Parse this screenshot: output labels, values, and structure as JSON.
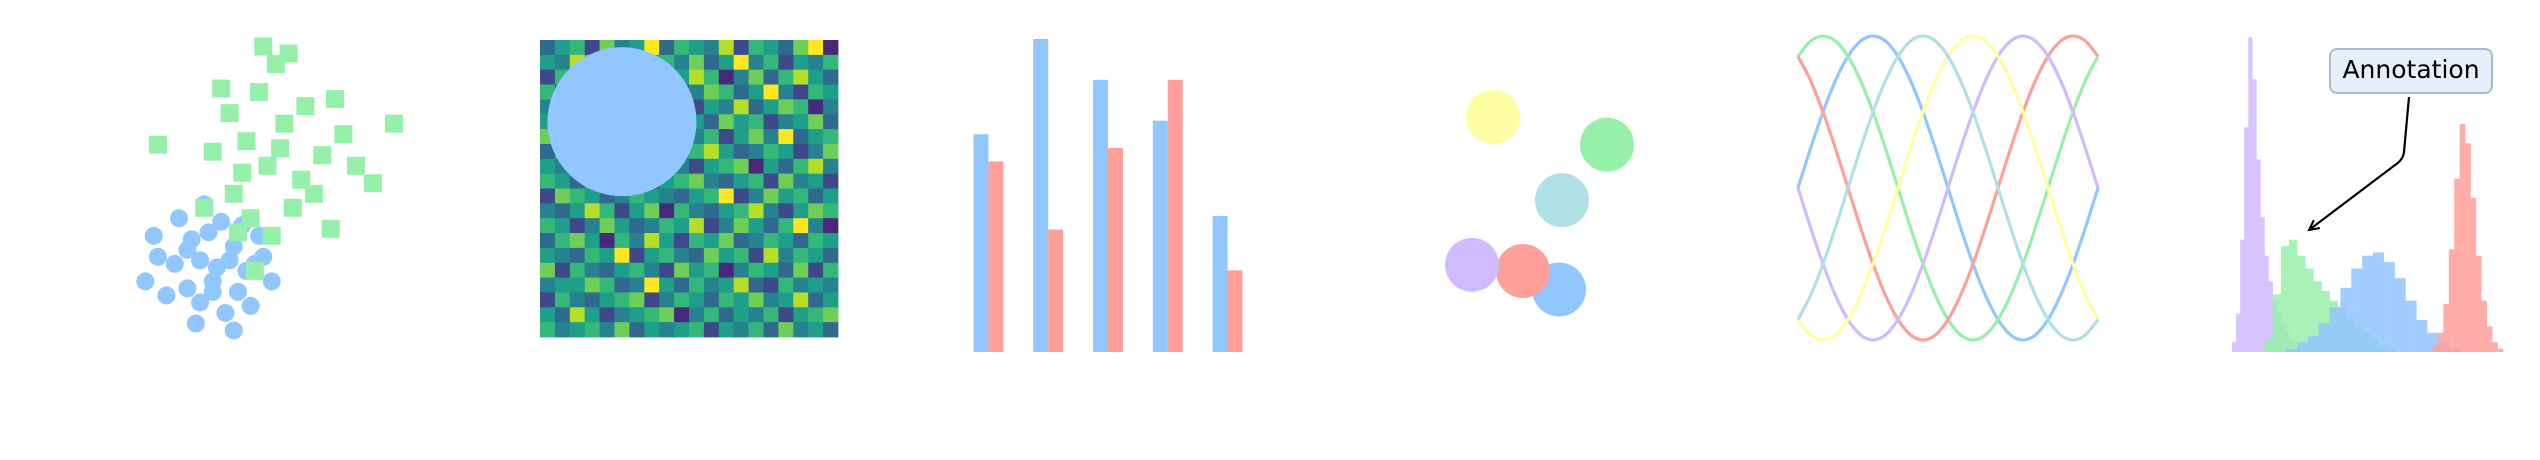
{
  "chart_data": [
    {
      "type": "scatter",
      "xlim": [
        -2.5,
        4.5
      ],
      "ylim": [
        -2.8,
        6.3
      ],
      "series": [
        {
          "color": "#92c6ff",
          "marker": "circle",
          "x": [
            -1.2,
            -0.8,
            -0.3,
            0.2,
            -0.6,
            -1.6,
            0.5,
            -0.1,
            0.3,
            -0.9,
            0.8,
            -0.4,
            -1.9,
            0.1,
            -0.7,
            0.6,
            -0.2,
            -1.1,
            0.9,
            -0.5,
            0.0,
            -1.4,
            0.4,
            -0.9,
            0.2,
            -0.3,
            1.1,
            -1.7,
            -0.6,
            0.7
          ],
          "values": [
            -0.4,
            0.3,
            -0.9,
            0.1,
            -1.5,
            -0.2,
            -0.6,
            0.8,
            -1.2,
            -1.1,
            0.4,
            0.5,
            -0.9,
            -0.3,
            -2.1,
            -1.6,
            -0.5,
            0.9,
            -0.2,
            1.3,
            -1.8,
            -1.3,
            0.7,
            0.0,
            -2.3,
            -1.2,
            -0.9,
            0.4,
            -0.3,
            -0.4
          ]
        },
        {
          "color": "#97f0aa",
          "marker": "square",
          "x": [
            1.0,
            0.5,
            1.8,
            0.2,
            1.4,
            2.3,
            0.8,
            -0.3,
            1.6,
            2.8,
            0.1,
            1.2,
            3.5,
            -1.6,
            0.6,
            1.9,
            0.9,
            2.5,
            4.0,
            -0.5,
            1.3,
            0.4,
            2.1,
            0.7,
            1.5,
            3.1,
            -0.1,
            1.1,
            2.6,
            0.3
          ],
          "values": [
            2.4,
            3.1,
            2.0,
            1.6,
            3.6,
            2.7,
            4.5,
            2.8,
            1.2,
            3.3,
            3.9,
            5.3,
            1.9,
            3.0,
            0.9,
            4.1,
            5.8,
            0.6,
            3.6,
            1.2,
            2.9,
            2.2,
            1.6,
            -0.6,
            5.6,
            2.4,
            4.6,
            0.4,
            4.3,
            0.5
          ]
        }
      ]
    },
    {
      "type": "heatmap",
      "xlim": [
        -0.5,
        19.5
      ],
      "ylim": [
        19.5,
        -0.5
      ],
      "clim": [
        0,
        9
      ],
      "colormap": [
        "#440154",
        "#482878",
        "#3e4989",
        "#31688e",
        "#26828e",
        "#1f9e89",
        "#35b779",
        "#6ece58",
        "#b5de2b",
        "#fde725"
      ],
      "z": [
        [
          3,
          5,
          6,
          2,
          7,
          4,
          5,
          9,
          3,
          6,
          5,
          4,
          8,
          2,
          6,
          5,
          3,
          7,
          9,
          1
        ],
        [
          5,
          4,
          8,
          6,
          3,
          7,
          1,
          5,
          6,
          4,
          7,
          3,
          5,
          9,
          4,
          6,
          2,
          5,
          4,
          6
        ],
        [
          2,
          6,
          4,
          5,
          9,
          3,
          6,
          4,
          2,
          5,
          8,
          6,
          1,
          4,
          7,
          3,
          6,
          8,
          5,
          3
        ],
        [
          6,
          3,
          5,
          7,
          4,
          6,
          2,
          8,
          5,
          3,
          4,
          7,
          6,
          3,
          5,
          9,
          4,
          2,
          6,
          5
        ],
        [
          4,
          7,
          2,
          5,
          6,
          1,
          5,
          3,
          7,
          6,
          2,
          5,
          4,
          8,
          3,
          5,
          7,
          6,
          1,
          4
        ],
        [
          5,
          5,
          6,
          3,
          4,
          7,
          6,
          2,
          4,
          8,
          5,
          3,
          7,
          5,
          6,
          2,
          4,
          5,
          7,
          3
        ],
        [
          7,
          2,
          4,
          6,
          5,
          3,
          8,
          5,
          6,
          1,
          4,
          6,
          2,
          5,
          7,
          4,
          9,
          3,
          5,
          6
        ],
        [
          3,
          6,
          5,
          4,
          2,
          6,
          4,
          7,
          3,
          5,
          6,
          8,
          5,
          3,
          4,
          6,
          5,
          2,
          4,
          7
        ],
        [
          5,
          4,
          7,
          1,
          6,
          5,
          3,
          6,
          8,
          4,
          2,
          5,
          6,
          7,
          1,
          5,
          3,
          6,
          8,
          4
        ],
        [
          6,
          5,
          3,
          6,
          4,
          8,
          5,
          2,
          5,
          6,
          7,
          4,
          3,
          5,
          6,
          2,
          7,
          4,
          5,
          2
        ],
        [
          2,
          7,
          6,
          5,
          3,
          4,
          6,
          5,
          4,
          3,
          5,
          6,
          9,
          2,
          4,
          7,
          5,
          6,
          3,
          5
        ],
        [
          4,
          3,
          5,
          8,
          6,
          2,
          5,
          7,
          1,
          6,
          4,
          3,
          5,
          6,
          8,
          4,
          2,
          5,
          7,
          6
        ],
        [
          6,
          5,
          2,
          4,
          7,
          5,
          3,
          4,
          6,
          5,
          8,
          2,
          4,
          7,
          5,
          3,
          6,
          9,
          4,
          1
        ],
        [
          3,
          6,
          7,
          5,
          1,
          6,
          4,
          8,
          5,
          2,
          6,
          5,
          7,
          3,
          4,
          6,
          5,
          3,
          6,
          5
        ],
        [
          5,
          4,
          3,
          6,
          5,
          9,
          2,
          5,
          6,
          4,
          3,
          7,
          5,
          6,
          2,
          8,
          4,
          6,
          5,
          3
        ],
        [
          7,
          2,
          6,
          4,
          3,
          5,
          6,
          4,
          2,
          7,
          5,
          6,
          1,
          4,
          6,
          5,
          3,
          7,
          2,
          6
        ],
        [
          4,
          5,
          5,
          7,
          6,
          3,
          4,
          9,
          5,
          3,
          6,
          4,
          5,
          8,
          3,
          2,
          6,
          4,
          5,
          4
        ],
        [
          2,
          6,
          4,
          3,
          5,
          6,
          7,
          2,
          4,
          6,
          5,
          3,
          6,
          5,
          7,
          4,
          5,
          8,
          3,
          5
        ],
        [
          5,
          3,
          8,
          5,
          2,
          4,
          5,
          6,
          7,
          1,
          4,
          6,
          3,
          5,
          4,
          6,
          2,
          5,
          6,
          7
        ],
        [
          6,
          4,
          5,
          6,
          4,
          7,
          3,
          5,
          4,
          5,
          6,
          2,
          5,
          4,
          6,
          3,
          7,
          4,
          5,
          3
        ]
      ],
      "circle": {
        "center": [
          5,
          5
        ],
        "radius": 5,
        "color": "#92c6ff"
      }
    },
    {
      "type": "bar",
      "xlim": [
        -0.2,
        4.45
      ],
      "ylim": [
        0,
        23
      ],
      "series": [
        {
          "color": "#92c6ff",
          "values": [
            16,
            23,
            20,
            17,
            10
          ]
        },
        {
          "color": "#ff9f9a",
          "values": [
            14,
            9,
            15,
            20,
            6
          ]
        }
      ]
    },
    {
      "type": "circles",
      "xlim": [
        0,
        10
      ],
      "ylim": [
        0,
        10
      ],
      "radius": 0.9,
      "x": [
        5.8,
        7.4,
        4.6,
        2.9,
        3.6,
        5.9
      ],
      "values": [
        1.9,
        6.6,
        2.5,
        2.7,
        7.5,
        4.8
      ],
      "colors": [
        "#92c6ff",
        "#97f0aa",
        "#ff9f9a",
        "#d0bbff",
        "#fffea3",
        "#b0e0e6"
      ]
    },
    {
      "type": "line",
      "xlim": [
        0,
        6.283
      ],
      "ylim": [
        -1,
        1
      ],
      "x": [
        0,
        0.262,
        0.524,
        0.785,
        1.047,
        1.309,
        1.571,
        1.833,
        2.094,
        2.356,
        2.618,
        2.88,
        3.142,
        3.403,
        3.665,
        3.927,
        4.189,
        4.451,
        4.712,
        4.974,
        5.236,
        5.498,
        5.76,
        6.021,
        6.283
      ],
      "series": [
        {
          "color": "#92c6ff",
          "values": [
            0,
            0.259,
            0.5,
            0.707,
            0.866,
            0.966,
            1,
            0.966,
            0.866,
            0.707,
            0.5,
            0.259,
            0,
            -0.259,
            -0.5,
            -0.707,
            -0.866,
            -0.966,
            -1,
            -0.966,
            -0.866,
            -0.707,
            -0.5,
            -0.259,
            0
          ]
        },
        {
          "color": "#97f0aa",
          "values": [
            0.866,
            0.966,
            1,
            0.966,
            0.866,
            0.707,
            0.5,
            0.259,
            0,
            -0.259,
            -0.5,
            -0.707,
            -0.866,
            -0.966,
            -1,
            -0.966,
            -0.866,
            -0.707,
            -0.5,
            -0.259,
            0,
            0.259,
            0.5,
            0.707,
            0.866
          ]
        },
        {
          "color": "#ff9f9a",
          "values": [
            0.866,
            0.707,
            0.5,
            0.259,
            0,
            -0.259,
            -0.5,
            -0.707,
            -0.866,
            -0.966,
            -1,
            -0.966,
            -0.866,
            -0.707,
            -0.5,
            -0.259,
            0,
            0.259,
            0.5,
            0.707,
            0.866,
            0.966,
            1,
            0.966,
            0.866
          ]
        },
        {
          "color": "#d0bbff",
          "values": [
            0,
            -0.259,
            -0.5,
            -0.707,
            -0.866,
            -0.966,
            -1,
            -0.966,
            -0.866,
            -0.707,
            -0.5,
            -0.259,
            0,
            0.259,
            0.5,
            0.707,
            0.866,
            0.966,
            1,
            0.966,
            0.866,
            0.707,
            0.5,
            0.259,
            0
          ]
        },
        {
          "color": "#fffea3",
          "values": [
            -0.866,
            -0.966,
            -1,
            -0.966,
            -0.866,
            -0.707,
            -0.5,
            -0.259,
            0,
            0.259,
            0.5,
            0.707,
            0.866,
            0.966,
            1,
            0.966,
            0.866,
            0.707,
            0.5,
            0.259,
            0,
            -0.259,
            -0.5,
            -0.707,
            -0.866
          ]
        },
        {
          "color": "#b0e0e6",
          "values": [
            -0.866,
            -0.707,
            -0.5,
            -0.259,
            0,
            0.259,
            0.5,
            0.707,
            0.866,
            0.966,
            1,
            0.966,
            0.866,
            0.707,
            0.5,
            0.259,
            0,
            -0.259,
            -0.5,
            -0.707,
            -0.866,
            -0.966,
            -1,
            -0.966,
            -0.866
          ]
        }
      ]
    },
    {
      "type": "histogram",
      "xlim": [
        0,
        1
      ],
      "ylim": [
        0,
        10
      ],
      "annotation": "Annotation",
      "series": [
        {
          "color": "#d0bbff",
          "bins": [
            0,
            0.015,
            0.03,
            0.045,
            0.06,
            0.075,
            0.09,
            0.105,
            0.12,
            0.135,
            0.15,
            0.165,
            0.18,
            0.195,
            0.21,
            0.225,
            0.24
          ],
          "values": [
            0.3,
            1.2,
            3.5,
            7,
            9.8,
            8.5,
            6,
            4.2,
            3,
            2.2,
            1.6,
            1.2,
            0.9,
            0.6,
            0.4,
            0.2
          ]
        },
        {
          "color": "#97f0aa",
          "bins": [
            0.12,
            0.15,
            0.18,
            0.21,
            0.24,
            0.27,
            0.3,
            0.33,
            0.36,
            0.39,
            0.42,
            0.45,
            0.48,
            0.51,
            0.54,
            0.57,
            0.6
          ],
          "values": [
            0.4,
            1.8,
            3.3,
            3.5,
            3.0,
            2.6,
            2.2,
            1.9,
            1.6,
            1.4,
            1.1,
            0.8,
            0.6,
            0.4,
            0.2,
            0.1
          ]
        },
        {
          "color": "#92c6ff",
          "bins": [
            0.2,
            0.24,
            0.28,
            0.32,
            0.36,
            0.4,
            0.44,
            0.48,
            0.52,
            0.56,
            0.6,
            0.64,
            0.68,
            0.72,
            0.76,
            0.8,
            0.84
          ],
          "values": [
            0.1,
            0.3,
            0.5,
            0.9,
            1.4,
            2.0,
            2.6,
            3.0,
            3.1,
            2.8,
            2.3,
            1.6,
            1.0,
            0.6,
            0.3,
            0.1
          ]
        },
        {
          "color": "#ff9f9a",
          "bins": [
            0.74,
            0.76,
            0.78,
            0.8,
            0.82,
            0.84,
            0.86,
            0.88,
            0.9,
            0.92,
            0.94,
            0.96,
            0.98,
            1.0
          ],
          "values": [
            0.2,
            0.6,
            1.5,
            3.2,
            5.4,
            7.1,
            6.5,
            4.8,
            3.0,
            1.6,
            0.8,
            0.3,
            0.1
          ]
        }
      ]
    }
  ]
}
